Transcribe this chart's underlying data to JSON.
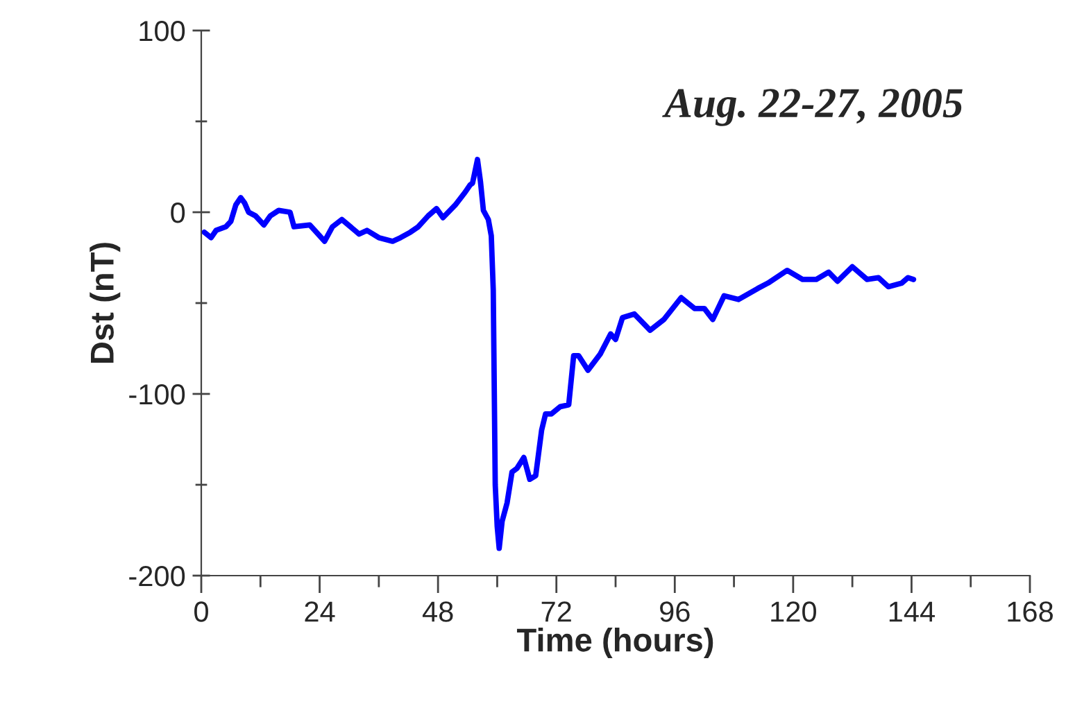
{
  "chart_data": {
    "type": "line",
    "xlabel": "Time (hours)",
    "ylabel": "Dst (nT)",
    "annotations": [
      "Aug. 22-27, 2005"
    ],
    "x": [
      0.6,
      2,
      3,
      5,
      6,
      7,
      8,
      8.8,
      9.6,
      11,
      12.7,
      14,
      15.7,
      18,
      18.8,
      22,
      23,
      25,
      26.6,
      28.5,
      32,
      33.6,
      36,
      38.8,
      40.4,
      42.4,
      44,
      46,
      47.7,
      49,
      51.5,
      53.5,
      54.5,
      55,
      56,
      56.6,
      57.2,
      58.2,
      58.8,
      59.2,
      59.6,
      60,
      60.4,
      61,
      62,
      63,
      64,
      65.4,
      66.6,
      67.8,
      69,
      69.8,
      71,
      72.8,
      74.5,
      75.5,
      76.5,
      78.4,
      80.9,
      83,
      84,
      85.4,
      87.8,
      91,
      93.8,
      97.3,
      100,
      102,
      103.7,
      106,
      108.9,
      112.8,
      114.9,
      118.8,
      121.9,
      124.7,
      127.2,
      129,
      132,
      135,
      137.3,
      139.3,
      142,
      143.3,
      144.4
    ],
    "series": [
      {
        "color": "#0000ff",
        "values": [
          -11,
          -14,
          -10,
          -8,
          -5,
          4,
          8,
          5,
          0,
          -2,
          -7,
          -2,
          1,
          0,
          -8,
          -7,
          -10,
          -16,
          -8,
          -4,
          -12,
          -10,
          -14,
          -16,
          -14,
          -11,
          -8,
          -2,
          2,
          -3,
          4,
          11,
          15,
          16,
          29,
          17,
          1,
          -4,
          -13,
          -43,
          -150,
          -173,
          -185,
          -170,
          -160,
          -143,
          -141,
          -135,
          -147,
          -145,
          -120,
          -111,
          -111,
          -107,
          -106,
          -79,
          -79,
          -87,
          -78,
          -67,
          -70,
          -58,
          -56,
          -65,
          -59,
          -47,
          -53,
          -53,
          -59,
          -46,
          -48,
          -42,
          -39,
          -32,
          -37,
          -37,
          -33,
          -38,
          -30,
          -37,
          -36,
          -41,
          -39,
          -36,
          -37
        ]
      }
    ],
    "xlim": [
      0,
      168
    ],
    "xticks": [
      0,
      {
        "value": 12,
        "label": null
      },
      24,
      {
        "value": 36,
        "label": null
      },
      48,
      {
        "value": 60,
        "label": null
      },
      72,
      {
        "value": 84,
        "label": null
      },
      96,
      {
        "value": 108,
        "label": null
      },
      120,
      {
        "value": 132,
        "label": null
      },
      144,
      {
        "value": 156,
        "label": null
      },
      168
    ],
    "ylim": [
      -200,
      100
    ],
    "yticks": [
      -200,
      {
        "value": -150,
        "label": null
      },
      -100,
      {
        "value": -50,
        "label": null
      },
      0,
      {
        "value": 50,
        "label": null
      },
      100
    ],
    "grid": false,
    "legend": false,
    "marker": "none",
    "line_style": "solid"
  }
}
